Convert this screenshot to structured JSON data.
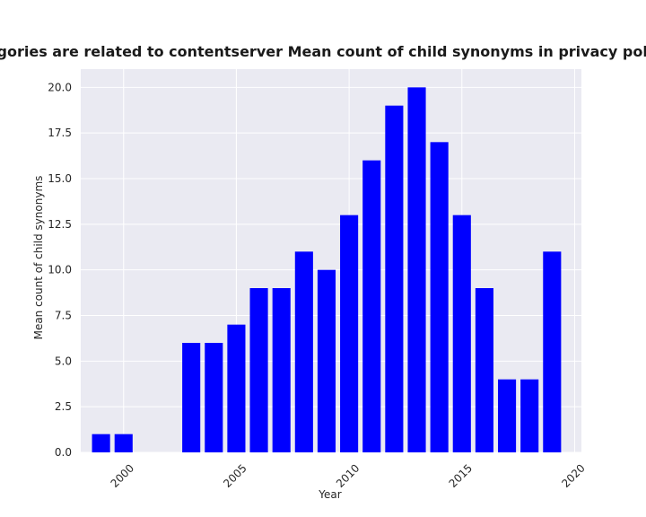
{
  "chart_data": {
    "type": "bar",
    "title": "en categories are related to contentserver Mean count of child synonyms in privacy policies by",
    "xlabel": "Year",
    "ylabel": "Mean count of child synonyms",
    "x": [
      1999,
      2000,
      2003,
      2004,
      2005,
      2006,
      2007,
      2008,
      2009,
      2010,
      2011,
      2012,
      2013,
      2014,
      2015,
      2016,
      2017,
      2018,
      2019
    ],
    "values": [
      1,
      1,
      6,
      6,
      7,
      9,
      9,
      11,
      10,
      13,
      16,
      19,
      20,
      17,
      13,
      9,
      4,
      4,
      11
    ],
    "xlim": [
      1998.1,
      2020.3
    ],
    "ylim": [
      0,
      21
    ],
    "xticks": [
      2000,
      2005,
      2010,
      2015,
      2020
    ],
    "xtick_labels": [
      "2000",
      "2005",
      "2010",
      "2015",
      "2020"
    ],
    "yticks": [
      0,
      2.5,
      5,
      7.5,
      10,
      12.5,
      15,
      17.5,
      20
    ],
    "ytick_labels": [
      "0.0",
      "2.5",
      "5.0",
      "7.5",
      "10.0",
      "12.5",
      "15.0",
      "17.5",
      "20.0"
    ],
    "bar_color": "#0000ff",
    "background_color": "#eaeaf2",
    "grid": true
  }
}
